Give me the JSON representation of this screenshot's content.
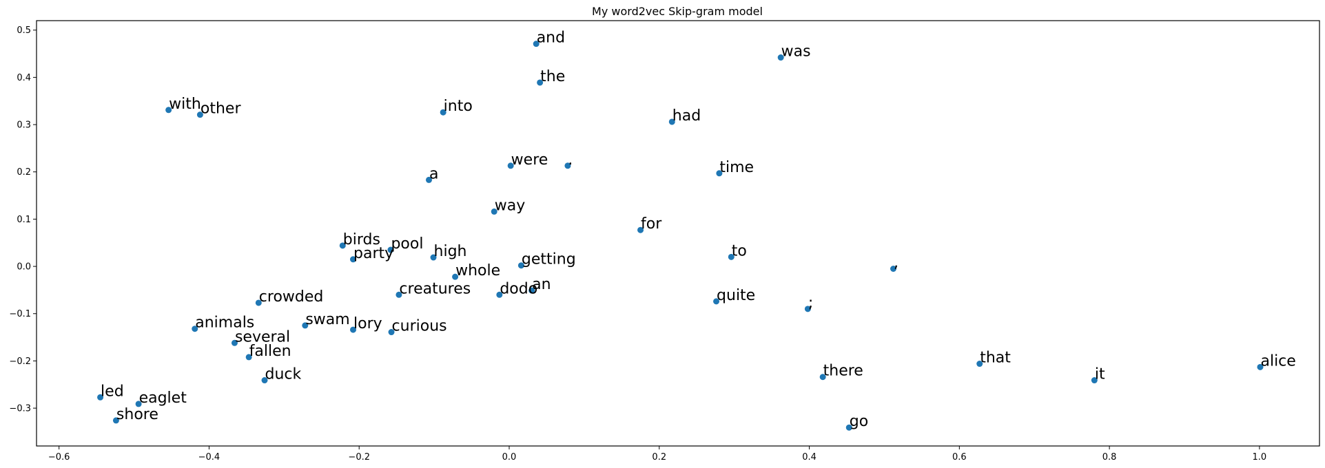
{
  "chart_data": {
    "type": "scatter",
    "title": "My word2vec Skip-gram  model",
    "xlabel": "",
    "ylabel": "",
    "xlim": [
      -0.63,
      1.08
    ],
    "ylim": [
      -0.38,
      0.52
    ],
    "xticks": [
      -0.6,
      -0.4,
      -0.2,
      0.0,
      0.2,
      0.4,
      0.6,
      0.8,
      1.0
    ],
    "yticks": [
      -0.3,
      -0.2,
      -0.1,
      0.0,
      0.1,
      0.2,
      0.3,
      0.4,
      0.5
    ],
    "grid": false,
    "marker_color": "#1f77b4",
    "points": [
      {
        "label": "and",
        "x": 0.036,
        "y": 0.471
      },
      {
        "label": "was",
        "x": 0.362,
        "y": 0.442
      },
      {
        "label": "the",
        "x": 0.041,
        "y": 0.389
      },
      {
        "label": "with",
        "x": -0.454,
        "y": 0.331
      },
      {
        "label": "other",
        "x": -0.412,
        "y": 0.321
      },
      {
        "label": "into",
        "x": -0.088,
        "y": 0.326
      },
      {
        "label": "had",
        "x": 0.217,
        "y": 0.306
      },
      {
        "label": "were",
        "x": 0.002,
        "y": 0.213
      },
      {
        "label": ".",
        "x": 0.078,
        "y": 0.213
      },
      {
        "label": "time",
        "x": 0.28,
        "y": 0.197
      },
      {
        "label": "a",
        "x": -0.107,
        "y": 0.183
      },
      {
        "label": "way",
        "x": -0.02,
        "y": 0.116
      },
      {
        "label": "for",
        "x": 0.175,
        "y": 0.077
      },
      {
        "label": "birds",
        "x": -0.222,
        "y": 0.044
      },
      {
        "label": "pool",
        "x": -0.158,
        "y": 0.035
      },
      {
        "label": "party",
        "x": -0.208,
        "y": 0.015
      },
      {
        "label": "high",
        "x": -0.101,
        "y": 0.019
      },
      {
        "label": "to",
        "x": 0.296,
        "y": 0.02
      },
      {
        "label": "getting",
        "x": 0.016,
        "y": 0.002
      },
      {
        "label": ",",
        "x": 0.512,
        "y": -0.005
      },
      {
        "label": "whole",
        "x": -0.072,
        "y": -0.022
      },
      {
        "label": "creatures",
        "x": -0.147,
        "y": -0.06
      },
      {
        "label": "dodo",
        "x": -0.013,
        "y": -0.06
      },
      {
        "label": "an",
        "x": 0.03,
        "y": -0.051
      },
      {
        "label": "quite",
        "x": 0.276,
        "y": -0.074
      },
      {
        "label": "crowded",
        "x": -0.334,
        "y": -0.077
      },
      {
        "label": ";",
        "x": 0.398,
        "y": -0.09
      },
      {
        "label": "animals",
        "x": -0.419,
        "y": -0.132
      },
      {
        "label": "swam",
        "x": -0.272,
        "y": -0.125
      },
      {
        "label": "lory",
        "x": -0.208,
        "y": -0.134
      },
      {
        "label": "curious",
        "x": -0.157,
        "y": -0.139
      },
      {
        "label": "several",
        "x": -0.366,
        "y": -0.162
      },
      {
        "label": "fallen",
        "x": -0.347,
        "y": -0.192
      },
      {
        "label": "duck",
        "x": -0.326,
        "y": -0.241
      },
      {
        "label": "there",
        "x": 0.418,
        "y": -0.234
      },
      {
        "label": "that",
        "x": 0.627,
        "y": -0.206
      },
      {
        "label": "it",
        "x": 0.78,
        "y": -0.241
      },
      {
        "label": "alice",
        "x": 1.001,
        "y": -0.213
      },
      {
        "label": "led",
        "x": -0.545,
        "y": -0.277
      },
      {
        "label": "eaglet",
        "x": -0.494,
        "y": -0.291
      },
      {
        "label": "shore",
        "x": -0.524,
        "y": -0.326
      },
      {
        "label": "go",
        "x": 0.453,
        "y": -0.341
      }
    ]
  }
}
